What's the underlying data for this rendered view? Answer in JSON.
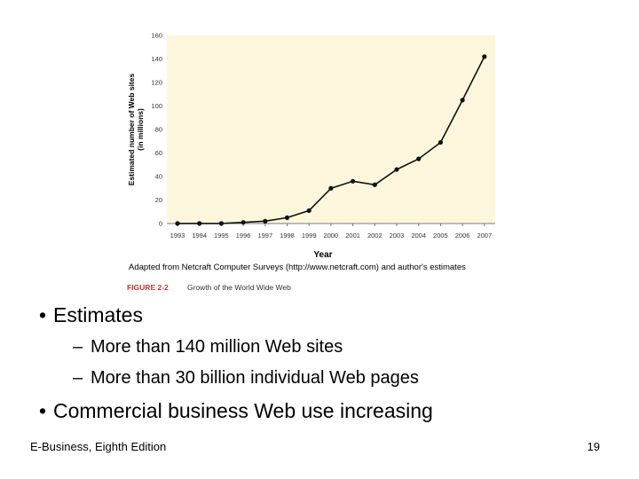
{
  "chart_data": {
    "type": "line",
    "ylabel": "Estimated number of Web sites (in millions)",
    "xlabel": "Year",
    "source": "Adapted from Netcraft Computer Surveys (http://www.netcraft.com) and author's estimates",
    "figure_label": "FIGURE 2-2",
    "figure_title": "Growth of the World Wide Web",
    "x": [
      "1993",
      "1994",
      "1995",
      "1996",
      "1997",
      "1998",
      "1999",
      "2000",
      "2001",
      "2002",
      "2003",
      "2004",
      "2005",
      "2006",
      "2007"
    ],
    "values": [
      0.1,
      0.1,
      0.1,
      1,
      2,
      5,
      11,
      30,
      36,
      33,
      46,
      55,
      69,
      105,
      142
    ],
    "ylim": [
      0,
      160
    ],
    "yticks": [
      0,
      20,
      40,
      60,
      80,
      100,
      120,
      140,
      160
    ],
    "grid": false,
    "colors": {
      "plot_bg": "#fcf7dc",
      "line": "#111111",
      "figure_label": "#c0392b"
    }
  },
  "bullets": [
    {
      "text": "Estimates",
      "sub": [
        "More than 140 million Web sites",
        "More than 30 billion individual Web pages"
      ]
    },
    {
      "text": "Commercial business Web use increasing",
      "sub": []
    }
  ],
  "footer": {
    "left": "E-Business, Eighth Edition",
    "page": "19"
  }
}
